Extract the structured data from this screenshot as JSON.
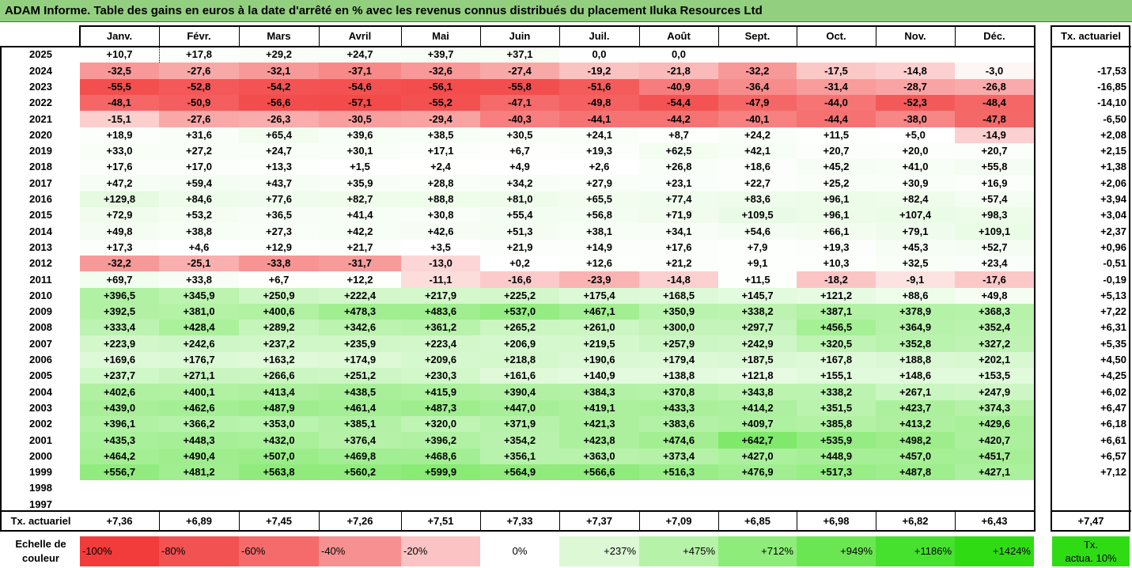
{
  "title": "ADAM Informe. Table des gains en euros à la date d'arrêté en % avec les revenus connus distribués du placement Iluka Resources Ltd",
  "months": [
    "Janv.",
    "Févr.",
    "Mars",
    "Avril",
    "Mai",
    "Juin",
    "Juil.",
    "Août",
    "Sept.",
    "Oct.",
    "Nov.",
    "Déc."
  ],
  "rate_header": "Tx. actuariel",
  "rows": [
    {
      "year": "2025",
      "values": [
        "+10,7",
        "+17,8",
        "+29,2",
        "+24,7",
        "+39,7",
        "+37,1",
        "0,0",
        "0,0",
        "",
        "",
        "",
        ""
      ],
      "rate": ""
    },
    {
      "year": "2024",
      "values": [
        "-32,5",
        "-27,6",
        "-32,1",
        "-37,1",
        "-32,6",
        "-27,4",
        "-19,2",
        "-21,8",
        "-32,2",
        "-17,5",
        "-14,8",
        "-3,0"
      ],
      "rate": "-17,53"
    },
    {
      "year": "2023",
      "values": [
        "-55,5",
        "-52,8",
        "-54,2",
        "-54,6",
        "-56,1",
        "-55,8",
        "-51,6",
        "-40,9",
        "-36,4",
        "-31,4",
        "-28,7",
        "-26,8"
      ],
      "rate": "-16,85"
    },
    {
      "year": "2022",
      "values": [
        "-48,1",
        "-50,9",
        "-56,6",
        "-57,1",
        "-55,2",
        "-47,1",
        "-49,8",
        "-54,4",
        "-47,9",
        "-44,0",
        "-52,3",
        "-48,4"
      ],
      "rate": "-14,10"
    },
    {
      "year": "2021",
      "values": [
        "-15,1",
        "-27,6",
        "-26,3",
        "-30,5",
        "-29,4",
        "-40,3",
        "-44,1",
        "-44,2",
        "-40,1",
        "-44,4",
        "-38,0",
        "-47,8"
      ],
      "rate": "-6,50"
    },
    {
      "year": "2020",
      "values": [
        "+18,9",
        "+31,6",
        "+65,4",
        "+39,6",
        "+38,5",
        "+30,5",
        "+24,1",
        "+8,7",
        "+24,2",
        "+11,5",
        "+5,0",
        "-14,9"
      ],
      "rate": "+2,08"
    },
    {
      "year": "2019",
      "values": [
        "+33,0",
        "+27,2",
        "+24,7",
        "+30,1",
        "+17,1",
        "+6,7",
        "+19,3",
        "+62,5",
        "+42,1",
        "+20,7",
        "+20,0",
        "+20,7"
      ],
      "rate": "+2,15"
    },
    {
      "year": "2018",
      "values": [
        "+17,6",
        "+17,0",
        "+13,3",
        "+1,5",
        "+2,4",
        "+4,9",
        "+2,6",
        "+26,8",
        "+18,6",
        "+45,2",
        "+41,0",
        "+55,8"
      ],
      "rate": "+1,38"
    },
    {
      "year": "2017",
      "values": [
        "+47,2",
        "+59,4",
        "+43,7",
        "+35,9",
        "+28,8",
        "+34,2",
        "+27,9",
        "+23,1",
        "+22,7",
        "+25,2",
        "+30,9",
        "+16,9"
      ],
      "rate": "+2,06"
    },
    {
      "year": "2016",
      "values": [
        "+129,8",
        "+84,6",
        "+77,6",
        "+82,7",
        "+88,8",
        "+81,0",
        "+65,5",
        "+77,4",
        "+83,6",
        "+96,1",
        "+82,4",
        "+57,4"
      ],
      "rate": "+3,94"
    },
    {
      "year": "2015",
      "values": [
        "+72,9",
        "+53,2",
        "+36,5",
        "+41,4",
        "+30,8",
        "+55,4",
        "+56,8",
        "+71,9",
        "+109,5",
        "+96,1",
        "+107,4",
        "+98,3"
      ],
      "rate": "+3,04"
    },
    {
      "year": "2014",
      "values": [
        "+49,8",
        "+38,8",
        "+27,3",
        "+42,2",
        "+42,6",
        "+51,3",
        "+38,1",
        "+34,1",
        "+54,6",
        "+66,1",
        "+79,1",
        "+109,1"
      ],
      "rate": "+2,37"
    },
    {
      "year": "2013",
      "values": [
        "+17,3",
        "+4,6",
        "+12,9",
        "+21,7",
        "+3,5",
        "+21,9",
        "+14,9",
        "+17,6",
        "+7,9",
        "+19,3",
        "+45,3",
        "+52,7"
      ],
      "rate": "+0,96"
    },
    {
      "year": "2012",
      "values": [
        "-32,2",
        "-25,1",
        "-33,8",
        "-31,7",
        "-13,0",
        "+0,2",
        "+12,6",
        "+21,2",
        "+9,1",
        "+10,3",
        "+32,5",
        "+23,4"
      ],
      "rate": "-0,51"
    },
    {
      "year": "2011",
      "values": [
        "+69,7",
        "+33,8",
        "+6,7",
        "+12,2",
        "-11,1",
        "-16,6",
        "-23,9",
        "-14,8",
        "+11,5",
        "-18,2",
        "-9,1",
        "-17,6"
      ],
      "rate": "-0,19"
    },
    {
      "year": "2010",
      "values": [
        "+396,5",
        "+345,9",
        "+250,9",
        "+222,4",
        "+217,9",
        "+225,2",
        "+175,4",
        "+168,5",
        "+145,7",
        "+121,2",
        "+88,6",
        "+49,8"
      ],
      "rate": "+5,13"
    },
    {
      "year": "2009",
      "values": [
        "+392,5",
        "+381,0",
        "+400,6",
        "+478,3",
        "+483,6",
        "+537,0",
        "+467,1",
        "+350,9",
        "+338,2",
        "+387,1",
        "+378,9",
        "+368,3"
      ],
      "rate": "+7,22"
    },
    {
      "year": "2008",
      "values": [
        "+333,4",
        "+428,4",
        "+289,2",
        "+342,6",
        "+361,2",
        "+265,2",
        "+261,0",
        "+300,0",
        "+297,7",
        "+456,5",
        "+364,9",
        "+352,4"
      ],
      "rate": "+6,31"
    },
    {
      "year": "2007",
      "values": [
        "+223,9",
        "+242,6",
        "+237,2",
        "+235,9",
        "+223,4",
        "+206,9",
        "+219,5",
        "+257,9",
        "+242,9",
        "+320,5",
        "+352,8",
        "+327,2"
      ],
      "rate": "+5,35"
    },
    {
      "year": "2006",
      "values": [
        "+169,6",
        "+176,7",
        "+163,2",
        "+174,9",
        "+209,6",
        "+218,8",
        "+190,6",
        "+179,4",
        "+187,5",
        "+167,8",
        "+188,8",
        "+202,1"
      ],
      "rate": "+4,50"
    },
    {
      "year": "2005",
      "values": [
        "+237,7",
        "+271,1",
        "+266,6",
        "+251,2",
        "+230,3",
        "+161,6",
        "+140,9",
        "+138,8",
        "+121,8",
        "+155,1",
        "+148,6",
        "+153,5"
      ],
      "rate": "+4,25"
    },
    {
      "year": "2004",
      "values": [
        "+402,6",
        "+400,1",
        "+413,4",
        "+438,5",
        "+415,9",
        "+390,4",
        "+384,3",
        "+370,8",
        "+343,8",
        "+338,2",
        "+267,1",
        "+247,9"
      ],
      "rate": "+6,02"
    },
    {
      "year": "2003",
      "values": [
        "+439,0",
        "+462,6",
        "+487,9",
        "+461,4",
        "+487,3",
        "+447,0",
        "+419,1",
        "+433,3",
        "+414,2",
        "+351,5",
        "+423,7",
        "+374,3"
      ],
      "rate": "+6,47"
    },
    {
      "year": "2002",
      "values": [
        "+396,1",
        "+366,2",
        "+353,0",
        "+385,1",
        "+320,0",
        "+371,9",
        "+421,3",
        "+383,6",
        "+409,7",
        "+385,8",
        "+413,2",
        "+429,6"
      ],
      "rate": "+6,18"
    },
    {
      "year": "2001",
      "values": [
        "+435,3",
        "+448,3",
        "+432,0",
        "+376,4",
        "+396,2",
        "+354,2",
        "+423,8",
        "+474,6",
        "+642,7",
        "+535,9",
        "+498,2",
        "+420,7"
      ],
      "rate": "+6,61"
    },
    {
      "year": "2000",
      "values": [
        "+464,2",
        "+490,4",
        "+507,0",
        "+469,8",
        "+468,6",
        "+356,1",
        "+363,0",
        "+373,4",
        "+427,0",
        "+448,9",
        "+457,0",
        "+451,7"
      ],
      "rate": "+6,57"
    },
    {
      "year": "1999",
      "values": [
        "+556,7",
        "+481,2",
        "+563,8",
        "+560,2",
        "+599,9",
        "+564,9",
        "+566,6",
        "+516,3",
        "+476,9",
        "+517,3",
        "+487,8",
        "+427,1"
      ],
      "rate": "+7,12"
    },
    {
      "year": "1998",
      "values": [
        "",
        "",
        "",
        "",
        "",
        "",
        "",
        "",
        "",
        "",
        "",
        ""
      ],
      "rate": ""
    },
    {
      "year": "1997",
      "values": [
        "",
        "",
        "",
        "",
        "",
        "",
        "",
        "",
        "",
        "",
        "",
        ""
      ],
      "rate": ""
    }
  ],
  "footer": {
    "label": "Tx. actuariel",
    "values": [
      "+7,36",
      "+6,89",
      "+7,45",
      "+7,26",
      "+7,51",
      "+7,33",
      "+7,37",
      "+7,09",
      "+6,85",
      "+6,98",
      "+6,82",
      "+6,43"
    ],
    "rate": "+7,47"
  },
  "scale": {
    "label_line1": "Echelle de",
    "label_line2": "couleur",
    "steps": [
      {
        "label": "-100%",
        "color": "#f23b3b"
      },
      {
        "label": "-80%",
        "color": "#f35252"
      },
      {
        "label": "-60%",
        "color": "#f56b6b"
      },
      {
        "label": "-40%",
        "color": "#f79090"
      },
      {
        "label": "-20%",
        "color": "#fbc3c3"
      },
      {
        "label": "0%",
        "color": "#ffffff"
      },
      {
        "label": "+237%",
        "color": "#dcf8d4"
      },
      {
        "label": "+475%",
        "color": "#b6f2a7"
      },
      {
        "label": "+712%",
        "color": "#8eec7a"
      },
      {
        "label": "+949%",
        "color": "#6be653"
      },
      {
        "label": "+1186%",
        "color": "#46e02e"
      },
      {
        "label": "+1424%",
        "color": "#2fdc14"
      }
    ],
    "target_line1": "Tx.",
    "target_line2": "actua. 10%",
    "target_color": "#2fdc14"
  },
  "colors": {
    "title_bg": "#92d07f",
    "negative_max": "#f23b3b",
    "positive_max": "#2fdc14"
  }
}
